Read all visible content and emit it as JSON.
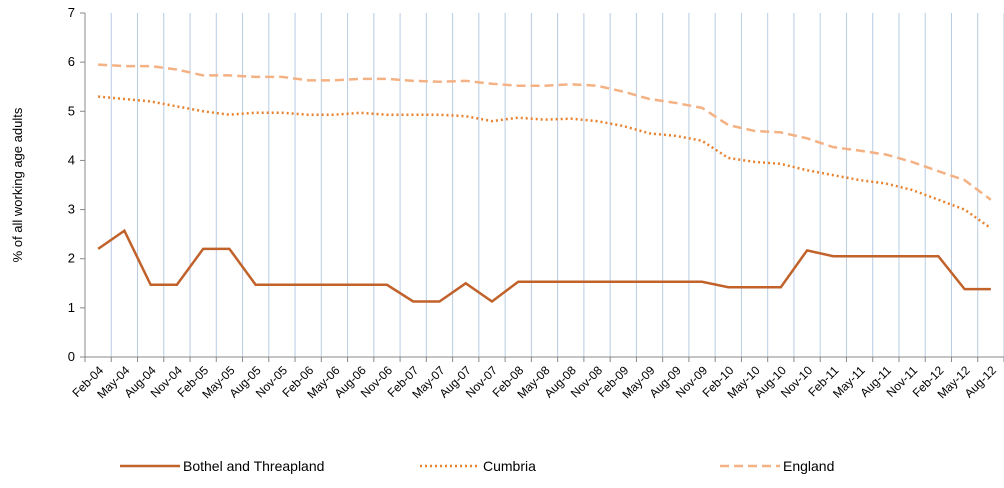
{
  "chart_data": {
    "type": "line",
    "y_label": "% of all working age adults",
    "categories": [
      "Feb-04",
      "May-04",
      "Aug-04",
      "Nov-04",
      "Feb-05",
      "May-05",
      "Aug-05",
      "Nov-05",
      "Feb-06",
      "May-06",
      "Aug-06",
      "Nov-06",
      "Feb-07",
      "May-07",
      "Aug-07",
      "Nov-07",
      "Feb-08",
      "May-08",
      "Aug-08",
      "Nov-08",
      "Feb-09",
      "May-09",
      "Aug-09",
      "Nov-09",
      "Feb-10",
      "May-10",
      "Aug-10",
      "Nov-10",
      "Feb-11",
      "May-11",
      "Aug-11",
      "Nov-11",
      "Feb-12",
      "May-12",
      "Aug-12"
    ],
    "series": [
      {
        "name": "Bothel and Threapland",
        "color": "#c0622a",
        "dash": "solid",
        "values": [
          2.2,
          2.57,
          1.47,
          1.47,
          2.2,
          2.2,
          1.47,
          1.47,
          1.47,
          1.47,
          1.47,
          1.47,
          1.13,
          1.13,
          1.5,
          1.13,
          1.53,
          1.53,
          1.53,
          1.53,
          1.53,
          1.53,
          1.53,
          1.53,
          1.42,
          1.42,
          1.42,
          2.17,
          2.05,
          2.05,
          2.05,
          2.05,
          2.05,
          1.38,
          1.38
        ]
      },
      {
        "name": "Cumbria",
        "color": "#e8822f",
        "dash": "dotted",
        "values": [
          5.3,
          5.25,
          5.2,
          5.1,
          5.0,
          4.93,
          4.97,
          4.97,
          4.93,
          4.93,
          4.97,
          4.93,
          4.93,
          4.93,
          4.9,
          4.8,
          4.87,
          4.83,
          4.85,
          4.8,
          4.7,
          4.55,
          4.5,
          4.4,
          4.05,
          3.97,
          3.93,
          3.8,
          3.7,
          3.6,
          3.53,
          3.4,
          3.2,
          3.0,
          2.62
        ]
      },
      {
        "name": "England",
        "color": "#f4b183",
        "dash": "dashed",
        "values": [
          5.95,
          5.92,
          5.92,
          5.85,
          5.73,
          5.73,
          5.7,
          5.7,
          5.63,
          5.63,
          5.66,
          5.66,
          5.62,
          5.6,
          5.62,
          5.56,
          5.52,
          5.52,
          5.55,
          5.52,
          5.4,
          5.25,
          5.17,
          5.07,
          4.72,
          4.6,
          4.57,
          4.45,
          4.27,
          4.2,
          4.12,
          3.97,
          3.78,
          3.6,
          3.2
        ]
      }
    ],
    "ylim": [
      0,
      7
    ],
    "yticks": [
      0,
      1,
      2,
      3,
      4,
      5,
      6,
      7
    ],
    "grid": "vertical",
    "grid_color": "#b8cce4",
    "legend": "bottom"
  }
}
